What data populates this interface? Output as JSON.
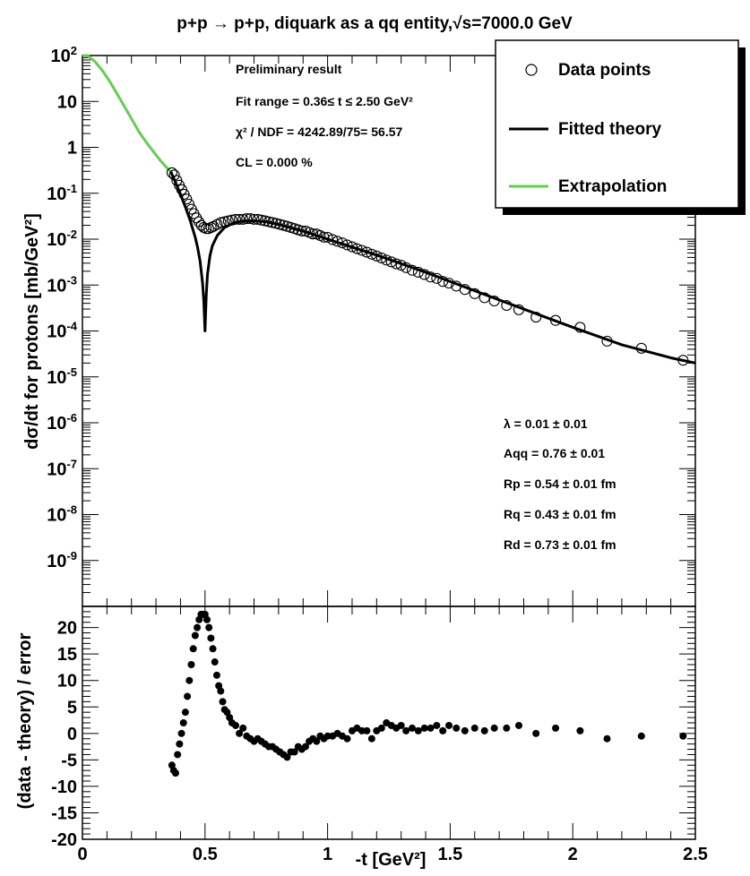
{
  "chart_data": [
    {
      "type": "scatter",
      "title": "p+p → p+p, diquark as a qq entity,√s=7000.0 GeV",
      "xlabel": "",
      "ylabel": "dσ/dt for protons [mb/GeV²]",
      "log_y": true,
      "xlim": [
        0,
        2.5
      ],
      "ylim": [
        1e-10,
        100
      ],
      "y_ticks": [
        {
          "exp": "2",
          "pre": "10",
          "value": 100
        },
        {
          "label": "10",
          "value": 10
        },
        {
          "label": "1",
          "value": 1
        },
        {
          "exp": "-1",
          "pre": "10",
          "value": 0.1
        },
        {
          "exp": "-2",
          "pre": "10",
          "value": 0.01
        },
        {
          "exp": "-3",
          "pre": "10",
          "value": 0.001
        },
        {
          "exp": "-4",
          "pre": "10",
          "value": 0.0001
        },
        {
          "exp": "-5",
          "pre": "10",
          "value": 1e-05
        },
        {
          "exp": "-6",
          "pre": "10",
          "value": 1e-06
        },
        {
          "exp": "-7",
          "pre": "10",
          "value": 1e-07
        },
        {
          "exp": "-8",
          "pre": "10",
          "value": 1e-08
        },
        {
          "exp": "-9",
          "pre": "10",
          "value": 1e-09
        }
      ],
      "legend": {
        "placement": "top-right",
        "entries": [
          "Data points",
          "Fitted theory",
          "Extrapolation"
        ]
      },
      "annotations_top": [
        "Preliminary result",
        "Fit range = 0.36≤ t ≤ 2.50 GeV²",
        "χ² / NDF = 4242.89/75= 56.57",
        "CL = 0.000 %"
      ],
      "annotations_params": [
        "λ = 0.01 ± 0.01",
        "Aqq = 0.76 ± 0.01",
        "Rp = 0.54 ± 0.01 fm",
        "Rq = 0.43 ± 0.01 fm",
        "Rd = 0.73 ± 0.01 fm"
      ],
      "colors": {
        "theory": "#000000",
        "extrapolation": "#66cc55",
        "data": "#000000"
      },
      "series": [
        {
          "name": "Data points",
          "x": [
            0.365,
            0.375,
            0.385,
            0.395,
            0.405,
            0.415,
            0.425,
            0.435,
            0.445,
            0.455,
            0.465,
            0.475,
            0.485,
            0.495,
            0.505,
            0.515,
            0.525,
            0.535,
            0.55,
            0.565,
            0.58,
            0.595,
            0.61,
            0.625,
            0.64,
            0.655,
            0.67,
            0.685,
            0.7,
            0.715,
            0.73,
            0.745,
            0.76,
            0.775,
            0.79,
            0.805,
            0.82,
            0.835,
            0.85,
            0.865,
            0.88,
            0.895,
            0.91,
            0.925,
            0.94,
            0.955,
            0.97,
            0.985,
            1.0,
            1.02,
            1.04,
            1.06,
            1.08,
            1.1,
            1.12,
            1.14,
            1.16,
            1.18,
            1.2,
            1.22,
            1.24,
            1.26,
            1.28,
            1.3,
            1.32,
            1.345,
            1.37,
            1.395,
            1.42,
            1.445,
            1.47,
            1.495,
            1.525,
            1.56,
            1.6,
            1.64,
            1.68,
            1.73,
            1.78,
            1.85,
            1.93,
            2.03,
            2.14,
            2.28,
            2.45
          ],
          "values": [
            0.28,
            0.25,
            0.19,
            0.15,
            0.12,
            0.095,
            0.075,
            0.058,
            0.045,
            0.036,
            0.029,
            0.024,
            0.02,
            0.018,
            0.017,
            0.017,
            0.018,
            0.019,
            0.021,
            0.023,
            0.024,
            0.025,
            0.026,
            0.027,
            0.027,
            0.027,
            0.028,
            0.028,
            0.027,
            0.027,
            0.026,
            0.025,
            0.024,
            0.023,
            0.022,
            0.021,
            0.02,
            0.019,
            0.018,
            0.017,
            0.016,
            0.015,
            0.015,
            0.014,
            0.013,
            0.013,
            0.012,
            0.011,
            0.011,
            0.0098,
            0.009,
            0.0083,
            0.0075,
            0.0068,
            0.0062,
            0.0057,
            0.0052,
            0.0047,
            0.0043,
            0.0039,
            0.0035,
            0.0032,
            0.0029,
            0.0027,
            0.0024,
            0.0021,
            0.0019,
            0.0017,
            0.0015,
            0.0014,
            0.0012,
            0.0011,
            0.00095,
            0.0008,
            0.00065,
            0.00053,
            0.00045,
            0.00036,
            0.00029,
            0.0002,
            0.00017,
            0.00012,
            6e-05,
            4.2e-05,
            2.3e-05
          ]
        },
        {
          "name": "Fitted theory",
          "x": [
            0.36,
            0.38,
            0.4,
            0.42,
            0.44,
            0.46,
            0.47,
            0.48,
            0.49,
            0.495,
            0.5,
            0.505,
            0.51,
            0.52,
            0.53,
            0.55,
            0.58,
            0.62,
            0.66,
            0.7,
            0.75,
            0.8,
            0.9,
            1.0,
            1.2,
            1.4,
            1.6,
            1.8,
            2.0,
            2.2,
            2.4,
            2.5
          ],
          "values": [
            0.3,
            0.17,
            0.095,
            0.05,
            0.025,
            0.011,
            0.0065,
            0.0033,
            0.0011,
            0.00045,
            0.0001,
            0.0006,
            0.0017,
            0.0043,
            0.0072,
            0.012,
            0.018,
            0.023,
            0.025,
            0.025,
            0.024,
            0.021,
            0.015,
            0.01,
            0.0045,
            0.0019,
            0.00075,
            0.0003,
            0.00012,
            5e-05,
            2.6e-05,
            2e-05
          ]
        },
        {
          "name": "Extrapolation",
          "x": [
            0.0,
            0.02,
            0.05,
            0.08,
            0.11,
            0.14,
            0.17,
            0.2,
            0.23,
            0.26,
            0.29,
            0.32,
            0.34,
            0.36
          ],
          "values": [
            100,
            100,
            75,
            48,
            28,
            15,
            8,
            4.2,
            2.2,
            1.3,
            0.8,
            0.5,
            0.38,
            0.3
          ]
        }
      ]
    },
    {
      "type": "scatter",
      "title": "",
      "xlabel": "-t [GeV²]",
      "ylabel": "(data - theory) / error",
      "xlim": [
        0,
        2.5
      ],
      "ylim": [
        -20,
        24
      ],
      "x_ticks": [
        {
          "label": "0",
          "value": 0
        },
        {
          "label": "0.5",
          "value": 0.5
        },
        {
          "label": "1",
          "value": 1
        },
        {
          "label": "1.5",
          "value": 1.5
        },
        {
          "label": "2",
          "value": 2
        },
        {
          "label": "2.5",
          "value": 2.5
        }
      ],
      "y_ticks": [
        {
          "label": "20",
          "value": 20
        },
        {
          "label": "15",
          "value": 15
        },
        {
          "label": "10",
          "value": 10
        },
        {
          "label": "5",
          "value": 5
        },
        {
          "label": "0",
          "value": 0
        },
        {
          "label": "-5",
          "value": -5
        },
        {
          "label": "-10",
          "value": -10
        },
        {
          "label": "-15",
          "value": -15
        },
        {
          "label": "-20",
          "value": -20
        }
      ],
      "series": [
        {
          "name": "",
          "x": [
            0.365,
            0.372,
            0.38,
            0.388,
            0.396,
            0.404,
            0.412,
            0.42,
            0.428,
            0.436,
            0.444,
            0.452,
            0.46,
            0.468,
            0.476,
            0.484,
            0.492,
            0.5,
            0.508,
            0.516,
            0.524,
            0.532,
            0.54,
            0.548,
            0.556,
            0.564,
            0.572,
            0.58,
            0.59,
            0.6,
            0.61,
            0.625,
            0.64,
            0.655,
            0.67,
            0.685,
            0.7,
            0.715,
            0.73,
            0.745,
            0.76,
            0.775,
            0.79,
            0.805,
            0.82,
            0.835,
            0.85,
            0.865,
            0.88,
            0.895,
            0.91,
            0.925,
            0.94,
            0.955,
            0.97,
            0.985,
            1.0,
            1.02,
            1.04,
            1.06,
            1.08,
            1.1,
            1.12,
            1.14,
            1.16,
            1.18,
            1.2,
            1.22,
            1.24,
            1.26,
            1.28,
            1.3,
            1.32,
            1.345,
            1.37,
            1.395,
            1.42,
            1.445,
            1.47,
            1.495,
            1.525,
            1.56,
            1.6,
            1.64,
            1.68,
            1.73,
            1.78,
            1.85,
            1.93,
            2.03,
            2.14,
            2.28,
            2.45
          ],
          "values": [
            -6,
            -7,
            -7.5,
            -4,
            -2,
            0,
            2,
            4,
            7,
            10,
            13,
            16,
            18.5,
            20,
            21.5,
            22.5,
            22.5,
            22.5,
            21.5,
            20,
            18,
            16,
            13.5,
            11,
            9,
            8,
            6,
            4.5,
            4,
            3,
            2,
            1.5,
            0,
            1,
            -0.5,
            -1,
            -1.5,
            -1,
            -1.5,
            -2,
            -2.5,
            -2.5,
            -3,
            -3.5,
            -4,
            -4.5,
            -3.5,
            -3.5,
            -2.5,
            -3,
            -2.5,
            -1.5,
            -1,
            -1.5,
            -0.5,
            -1,
            -0.5,
            -0.5,
            0,
            -0.5,
            -1,
            0.5,
            1,
            0.5,
            0.5,
            -1,
            0.5,
            1,
            2,
            1.5,
            1,
            1.5,
            0.5,
            1,
            0.5,
            1,
            1,
            1.5,
            0.5,
            1.5,
            1,
            0.5,
            1,
            0.5,
            1,
            1,
            1.5,
            0,
            1,
            0.5,
            -1,
            -0.5,
            -0.5
          ]
        }
      ]
    }
  ]
}
